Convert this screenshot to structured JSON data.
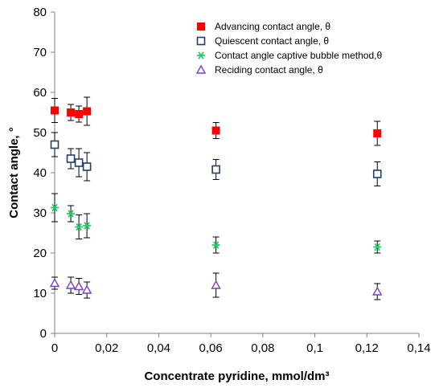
{
  "chart_data": {
    "type": "scatter",
    "xlabel": "Concentrate pyridine, mmol/dm³",
    "ylabel": "Contact angle, °",
    "xlim": [
      0,
      0.14
    ],
    "ylim": [
      0,
      80
    ],
    "x_ticks": [
      "0",
      "0,02",
      "0,04",
      "0,06",
      "0,08",
      "0,1",
      "0,12",
      "0,14"
    ],
    "y_ticks": [
      "0",
      "10",
      "20",
      "30",
      "40",
      "50",
      "60",
      "70",
      "80"
    ],
    "grid": false,
    "legend_position": "top-right",
    "series": [
      {
        "name": "Advancing contact angle, θ",
        "marker": "filled-square",
        "color": "#ff0000",
        "x": [
          0,
          0.0062,
          0.0093,
          0.0124,
          0.062,
          0.124
        ],
        "y": [
          55.5,
          55.0,
          54.6,
          55.3,
          50.5,
          49.8
        ],
        "err": [
          3.0,
          2.0,
          2.0,
          3.5,
          2.0,
          3.0
        ]
      },
      {
        "name": "Quiescent contact angle, θ",
        "marker": "open-square",
        "color": "#1f3f6f",
        "x": [
          0,
          0.0062,
          0.0093,
          0.0124,
          0.062,
          0.124
        ],
        "y": [
          47.0,
          43.5,
          42.5,
          41.5,
          40.8,
          39.7
        ],
        "err": [
          3.0,
          2.5,
          3.5,
          3.5,
          2.5,
          3.0
        ]
      },
      {
        "name": "Contact angle captive bubble method,θ",
        "marker": "asterisk",
        "color": "#22cc66",
        "x": [
          0,
          0.0062,
          0.0093,
          0.0124,
          0.062,
          0.124
        ],
        "y": [
          31.3,
          29.8,
          26.5,
          26.8,
          22.0,
          21.5
        ],
        "err": [
          3.5,
          2.0,
          3.0,
          3.0,
          2.0,
          1.5
        ]
      },
      {
        "name": "Reciding contact angle, θ",
        "marker": "open-triangle",
        "color": "#7a3fbf",
        "x": [
          0,
          0.0062,
          0.0093,
          0.0124,
          0.062,
          0.124
        ],
        "y": [
          12.5,
          12.0,
          11.7,
          10.8,
          12.0,
          10.4
        ],
        "err": [
          1.5,
          2.0,
          2.0,
          2.0,
          3.0,
          2.0
        ]
      }
    ]
  }
}
